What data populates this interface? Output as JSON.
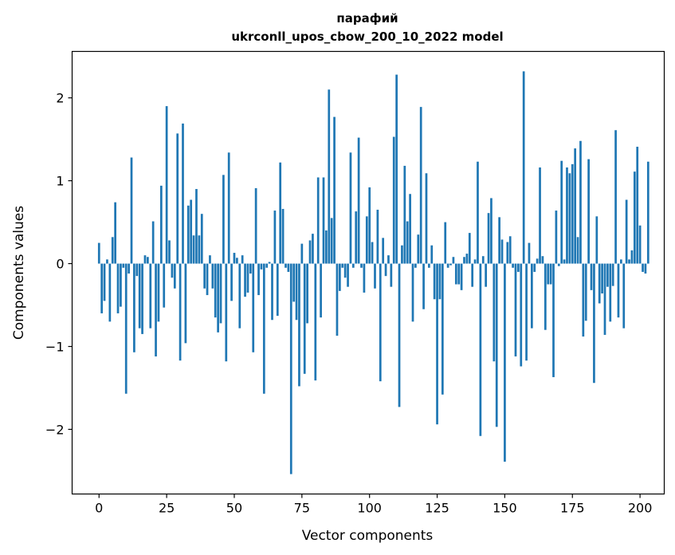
{
  "chart_data": {
    "type": "bar",
    "title_lines": [
      "парафий",
      "ukrconll_upos_cbow_200_10_2022 model"
    ],
    "xlabel": "Vector components",
    "ylabel": "Components values",
    "xlim": [
      -9.95,
      208.95
    ],
    "ylim": [
      -2.78,
      2.56
    ],
    "xticks": [
      0,
      25,
      50,
      75,
      100,
      125,
      150,
      175,
      200
    ],
    "yticks": [
      -2,
      -1,
      0,
      1,
      2
    ],
    "ytick_labels": [
      "−2",
      "−1",
      "0",
      "1",
      "2"
    ],
    "bar_color": "#1f77b4",
    "grid": false,
    "values": [
      0.25,
      -0.6,
      -0.45,
      0.05,
      -0.7,
      0.32,
      0.74,
      -0.6,
      -0.52,
      -0.05,
      -1.57,
      -0.12,
      1.28,
      -1.07,
      -0.15,
      -0.78,
      -0.85,
      0.1,
      0.08,
      -0.78,
      0.51,
      -1.12,
      -0.7,
      0.94,
      -0.53,
      1.9,
      0.28,
      -0.17,
      -0.3,
      1.57,
      -1.17,
      1.69,
      -0.96,
      0.7,
      0.77,
      0.34,
      0.9,
      0.34,
      0.6,
      -0.3,
      -0.38,
      0.1,
      -0.3,
      -0.65,
      -0.83,
      -0.72,
      1.07,
      -1.18,
      1.34,
      -0.45,
      0.13,
      0.07,
      -0.78,
      0.1,
      -0.4,
      -0.35,
      -0.12,
      -1.07,
      0.91,
      -0.38,
      -0.07,
      -1.57,
      -0.05,
      0.02,
      -0.68,
      0.64,
      -0.63,
      1.22,
      0.66,
      -0.05,
      -0.1,
      -2.54,
      -0.46,
      -0.68,
      -1.48,
      0.24,
      -1.33,
      -0.72,
      0.28,
      0.36,
      -1.41,
      1.04,
      -0.65,
      1.04,
      0.4,
      2.1,
      0.55,
      1.77,
      -0.87,
      -0.33,
      -0.05,
      -0.17,
      -0.28,
      1.34,
      -0.05,
      0.63,
      1.52,
      -0.05,
      -0.35,
      0.57,
      0.92,
      0.26,
      -0.3,
      0.65,
      -1.42,
      0.31,
      -0.15,
      0.1,
      -0.28,
      1.53,
      2.28,
      -1.73,
      0.22,
      1.18,
      0.51,
      0.84,
      -0.7,
      -0.05,
      0.35,
      1.89,
      -0.55,
      1.09,
      -0.05,
      0.22,
      -0.43,
      -1.94,
      -0.43,
      -1.58,
      0.5,
      -0.05,
      -0.02,
      0.08,
      -0.25,
      -0.25,
      -0.32,
      0.08,
      0.12,
      0.37,
      -0.28,
      0.05,
      1.23,
      -2.08,
      0.09,
      -0.28,
      0.61,
      0.79,
      -1.18,
      -1.97,
      0.56,
      0.29,
      -2.39,
      0.26,
      0.33,
      -0.05,
      -1.12,
      -0.1,
      -1.24,
      2.32,
      -1.17,
      0.25,
      -0.78,
      -0.1,
      0.06,
      1.16,
      0.09,
      -0.8,
      -0.25,
      -0.25,
      -1.37,
      0.64,
      -0.03,
      1.24,
      0.05,
      1.16,
      1.09,
      1.2,
      1.39,
      0.32,
      1.48,
      -0.88,
      -0.69,
      1.26,
      -0.32,
      -1.44,
      0.57,
      -0.48,
      -0.36,
      -0.86,
      -0.28,
      -0.7,
      -0.27,
      1.61,
      -0.65,
      0.05,
      -0.78,
      0.77,
      0.05,
      0.16,
      1.11,
      1.41,
      0.46,
      -0.1,
      -0.12,
      1.23
    ]
  }
}
